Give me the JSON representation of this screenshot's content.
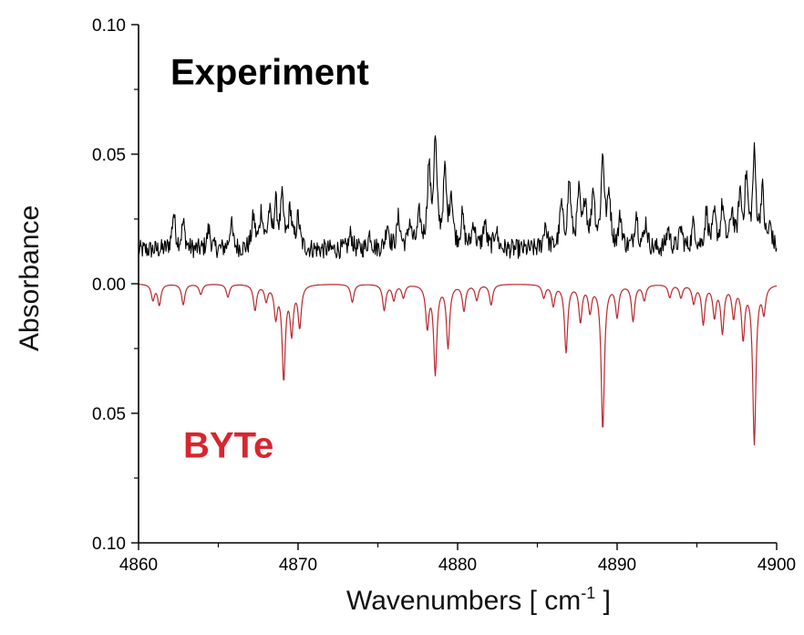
{
  "chart_data": {
    "type": "line",
    "xlabel": "Wavenumbers [ cm",
    "xlabel_sup": "-1",
    "xlabel_end": " ]",
    "ylabel": "Absorbance",
    "xlim": [
      4860,
      4900
    ],
    "ylim": [
      -0.1,
      0.1
    ],
    "x_ticks": [
      4860,
      4870,
      4880,
      4890,
      4900
    ],
    "y_ticks": [
      {
        "value": 0.1,
        "label": "0.10"
      },
      {
        "value": 0.05,
        "label": "0.05"
      },
      {
        "value": 0.0,
        "label": "0.00"
      },
      {
        "value": -0.05,
        "label": "0.05"
      },
      {
        "value": -0.1,
        "label": "0.10"
      }
    ],
    "grid": false,
    "annotations": [
      {
        "text": "Experiment",
        "color": "#000000",
        "x": 4862.0,
        "y": 0.077
      },
      {
        "text": "BYTe",
        "color": "#d7262f",
        "x": 4862.8,
        "y": -0.067
      }
    ],
    "series": [
      {
        "color": "#000000",
        "peaks": [
          [
            4862.2,
            0.014
          ],
          [
            4862.8,
            0.01
          ],
          [
            4864.4,
            0.008
          ],
          [
            4865.8,
            0.01
          ],
          [
            4867.2,
            0.012
          ],
          [
            4867.7,
            0.014
          ],
          [
            4868.2,
            0.013
          ],
          [
            4868.6,
            0.016
          ],
          [
            4869.0,
            0.018
          ],
          [
            4869.5,
            0.015
          ],
          [
            4870.0,
            0.012
          ],
          [
            4873.3,
            0.006
          ],
          [
            4874.5,
            0.006
          ],
          [
            4875.6,
            0.01
          ],
          [
            4876.3,
            0.012
          ],
          [
            4877.0,
            0.01
          ],
          [
            4877.6,
            0.012
          ],
          [
            4878.2,
            0.03
          ],
          [
            4878.6,
            0.04
          ],
          [
            4879.2,
            0.028
          ],
          [
            4879.6,
            0.02
          ],
          [
            4880.3,
            0.012
          ],
          [
            4881.0,
            0.01
          ],
          [
            4881.7,
            0.01
          ],
          [
            4882.4,
            0.008
          ],
          [
            4885.5,
            0.01
          ],
          [
            4886.5,
            0.016
          ],
          [
            4887.0,
            0.025
          ],
          [
            4887.6,
            0.02
          ],
          [
            4888.0,
            0.018
          ],
          [
            4888.5,
            0.022
          ],
          [
            4889.1,
            0.035
          ],
          [
            4889.5,
            0.02
          ],
          [
            4890.2,
            0.012
          ],
          [
            4891.2,
            0.014
          ],
          [
            4891.8,
            0.01
          ],
          [
            4893.2,
            0.008
          ],
          [
            4894.0,
            0.008
          ],
          [
            4894.8,
            0.01
          ],
          [
            4895.6,
            0.014
          ],
          [
            4896.1,
            0.012
          ],
          [
            4896.6,
            0.016
          ],
          [
            4897.2,
            0.014
          ],
          [
            4897.7,
            0.02
          ],
          [
            4898.1,
            0.026
          ],
          [
            4898.6,
            0.035
          ],
          [
            4899.1,
            0.022
          ],
          [
            4899.6,
            0.008
          ]
        ]
      },
      {
        "color": "#b8292e",
        "peaks": [
          [
            4860.9,
            0.006
          ],
          [
            4861.3,
            0.008
          ],
          [
            4862.8,
            0.008
          ],
          [
            4863.9,
            0.004
          ],
          [
            4865.6,
            0.005
          ],
          [
            4867.3,
            0.01
          ],
          [
            4868.0,
            0.006
          ],
          [
            4868.6,
            0.012
          ],
          [
            4869.1,
            0.036
          ],
          [
            4869.6,
            0.018
          ],
          [
            4870.1,
            0.016
          ],
          [
            4873.4,
            0.007
          ],
          [
            4875.4,
            0.01
          ],
          [
            4876.0,
            0.006
          ],
          [
            4876.6,
            0.005
          ],
          [
            4878.1,
            0.016
          ],
          [
            4878.6,
            0.034
          ],
          [
            4879.4,
            0.024
          ],
          [
            4880.4,
            0.01
          ],
          [
            4881.2,
            0.006
          ],
          [
            4882.1,
            0.008
          ],
          [
            4885.4,
            0.005
          ],
          [
            4886.0,
            0.008
          ],
          [
            4886.8,
            0.026
          ],
          [
            4887.7,
            0.014
          ],
          [
            4888.3,
            0.01
          ],
          [
            4889.1,
            0.056
          ],
          [
            4890.0,
            0.012
          ],
          [
            4891.0,
            0.014
          ],
          [
            4891.7,
            0.006
          ],
          [
            4893.3,
            0.005
          ],
          [
            4894.0,
            0.005
          ],
          [
            4894.8,
            0.007
          ],
          [
            4895.4,
            0.015
          ],
          [
            4896.1,
            0.012
          ],
          [
            4896.6,
            0.018
          ],
          [
            4897.3,
            0.012
          ],
          [
            4897.9,
            0.02
          ],
          [
            4898.6,
            0.061
          ],
          [
            4899.2,
            0.01
          ]
        ]
      }
    ]
  }
}
